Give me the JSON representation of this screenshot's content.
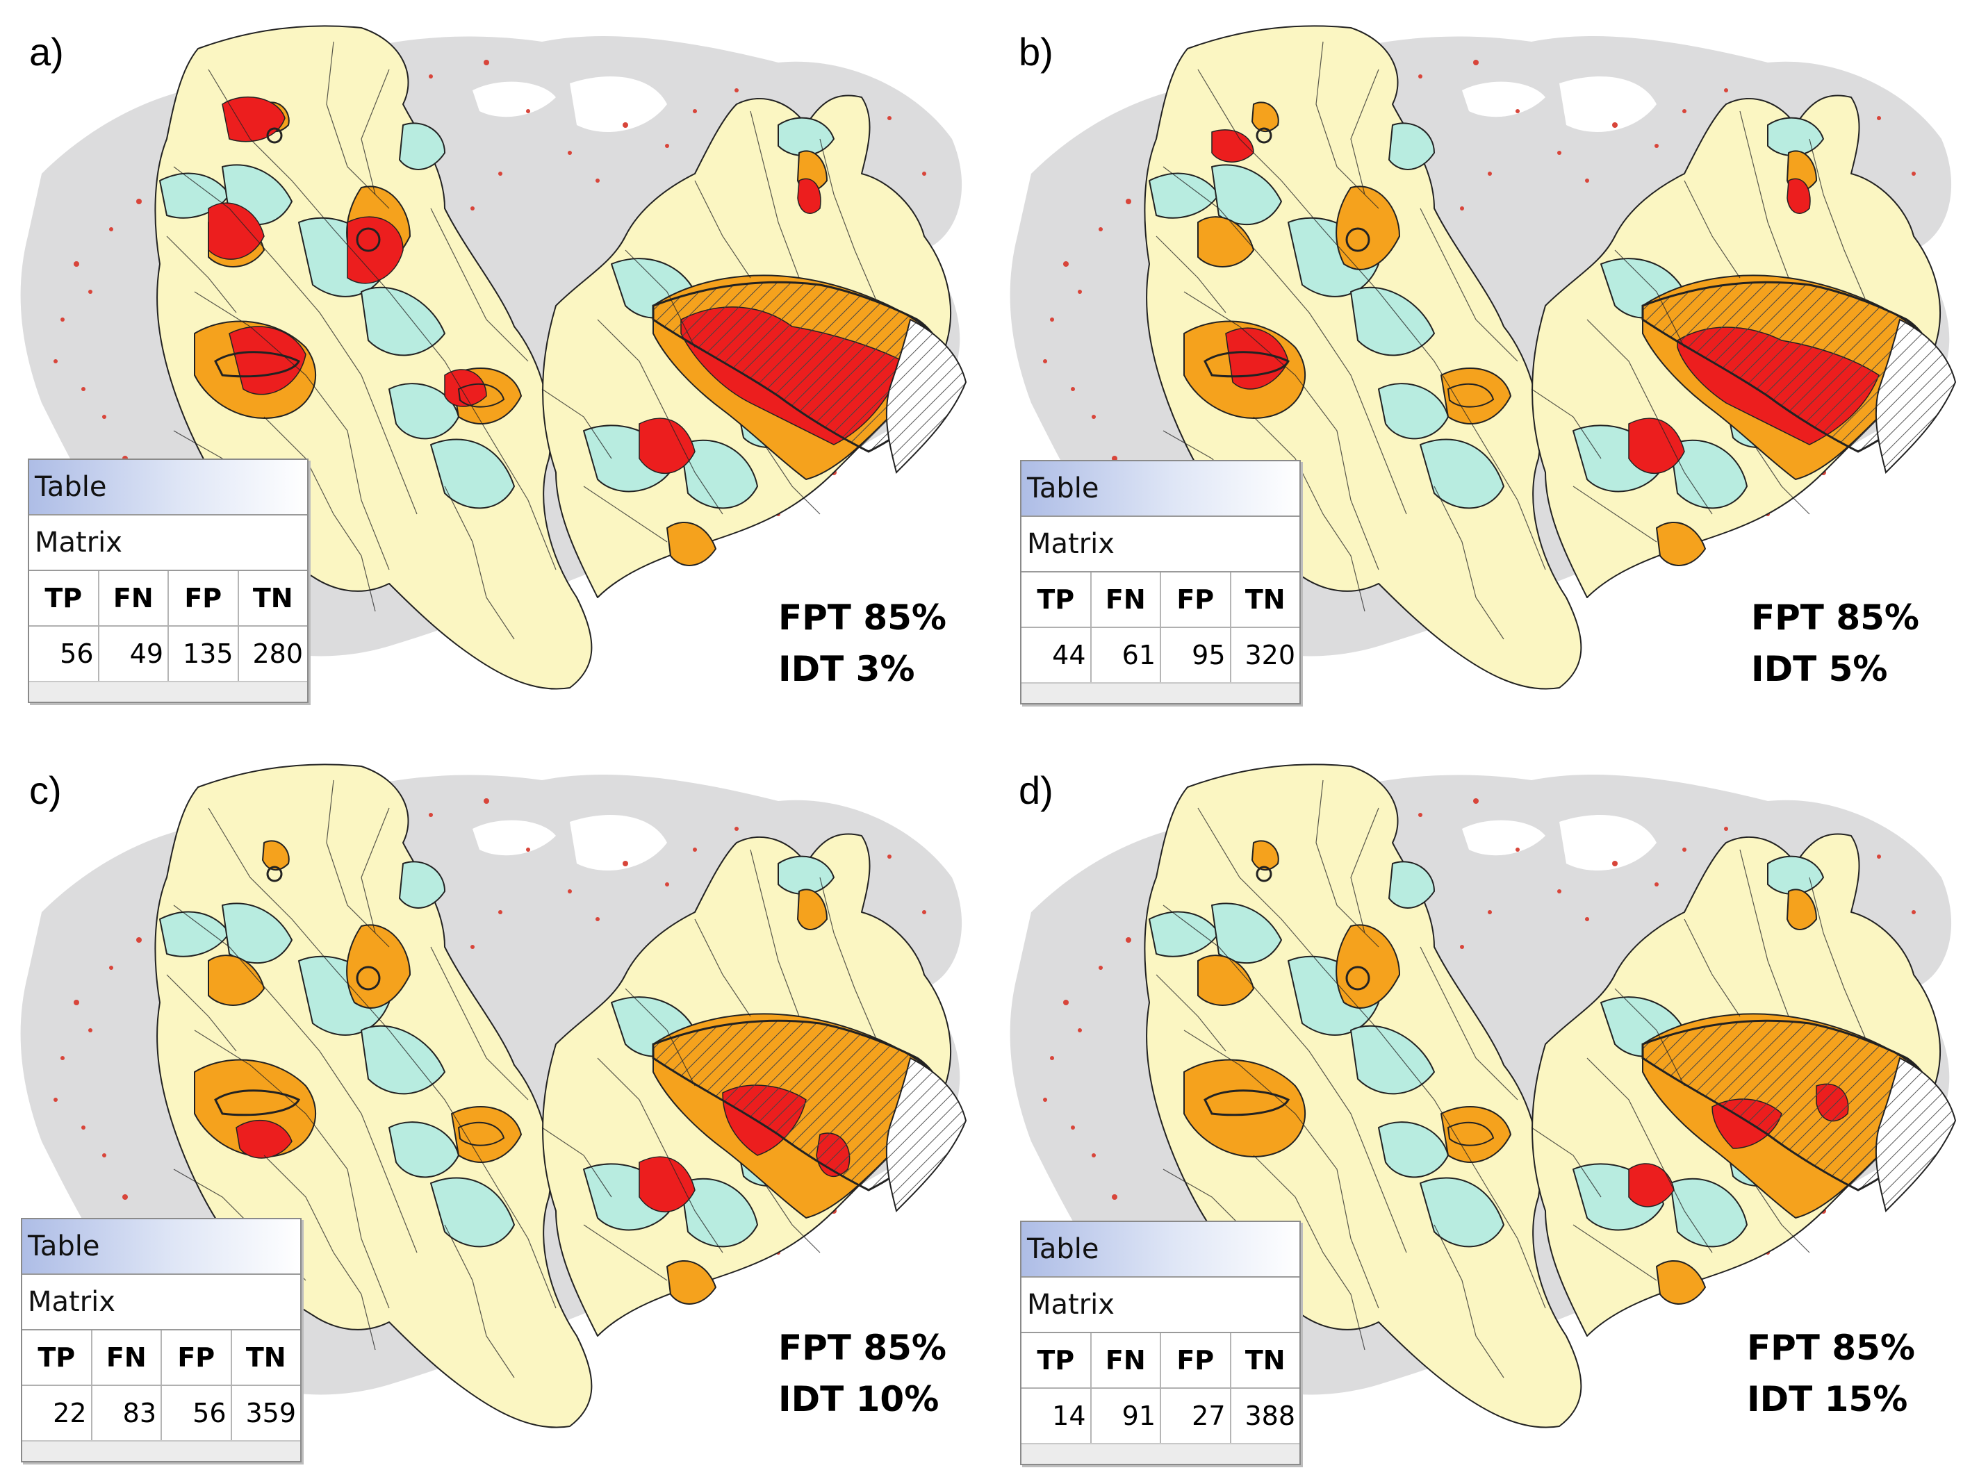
{
  "colors": {
    "background_land": "#dcdcdd",
    "scatter": "#d8453a",
    "true_negative": "#fbf6c2",
    "false_negative": "#b8ece0",
    "false_positive": "#f5a21d",
    "true_positive": "#ec1e1e",
    "outline": "#222222"
  },
  "panels": [
    {
      "label": "a)",
      "table": {
        "title": "Table",
        "subtitle": "Matrix",
        "headers": [
          "TP",
          "FN",
          "FP",
          "TN"
        ],
        "values": [
          "56",
          "49",
          "135",
          "280"
        ]
      },
      "fpt": "FPT 85%",
      "idt": "IDT 3%"
    },
    {
      "label": "b)",
      "table": {
        "title": "Table",
        "subtitle": "Matrix",
        "headers": [
          "TP",
          "FN",
          "FP",
          "TN"
        ],
        "values": [
          "44",
          "61",
          "95",
          "320"
        ]
      },
      "fpt": "FPT 85%",
      "idt": "IDT 5%"
    },
    {
      "label": "c)",
      "table": {
        "title": "Table",
        "subtitle": "Matrix",
        "headers": [
          "TP",
          "FN",
          "FP",
          "TN"
        ],
        "values": [
          "22",
          "83",
          "56",
          "359"
        ]
      },
      "fpt": "FPT 85%",
      "idt": "IDT 10%"
    },
    {
      "label": "d)",
      "table": {
        "title": "Table",
        "subtitle": "Matrix",
        "headers": [
          "TP",
          "FN",
          "FP",
          "TN"
        ],
        "values": [
          "14",
          "91",
          "27",
          "388"
        ]
      },
      "fpt": "FPT 85%",
      "idt": "IDT 15%"
    }
  ]
}
